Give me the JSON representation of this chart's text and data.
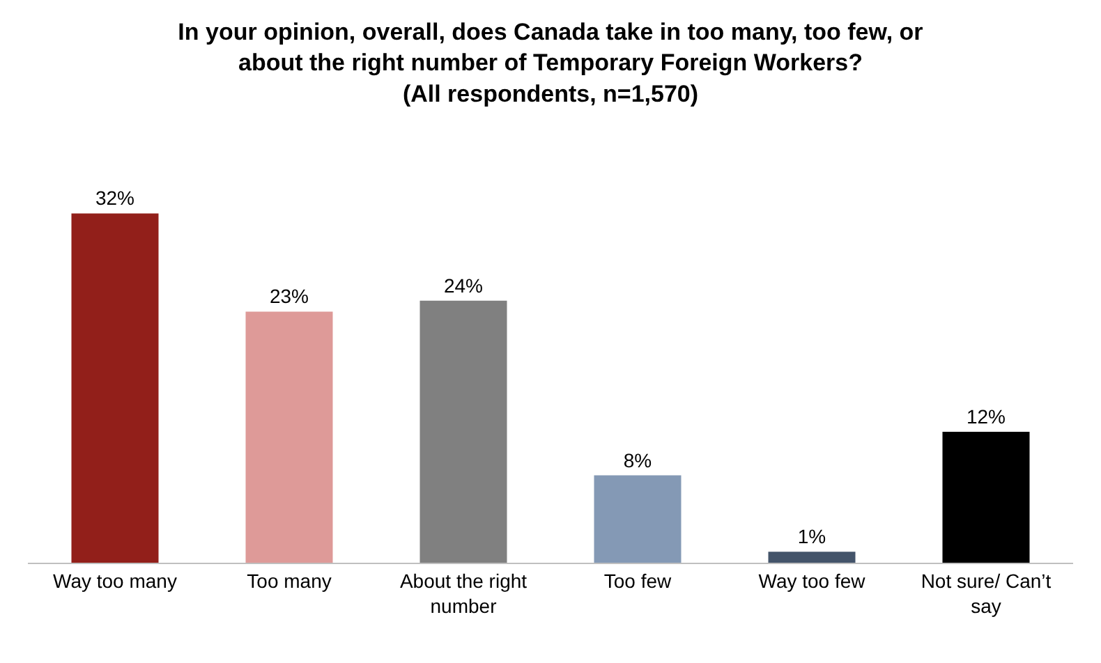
{
  "chart_data": {
    "type": "bar",
    "title": "In your opinion, overall, does Canada take in too many, too few, or\nabout the right number of Temporary Foreign Workers?\n(All respondents, n=1,570)",
    "categories": [
      "Way too many",
      "Too many",
      "About the right number",
      "Too few",
      "Way too few",
      "Not sure/ Can’t say"
    ],
    "values": [
      32,
      23,
      24,
      8,
      1,
      12
    ],
    "value_labels": [
      "32%",
      "23%",
      "24%",
      "8%",
      "1%",
      "12%"
    ],
    "colors": [
      "#921f1a",
      "#de9a98",
      "#808080",
      "#8499b5",
      "#44546a",
      "#000000"
    ]
  }
}
